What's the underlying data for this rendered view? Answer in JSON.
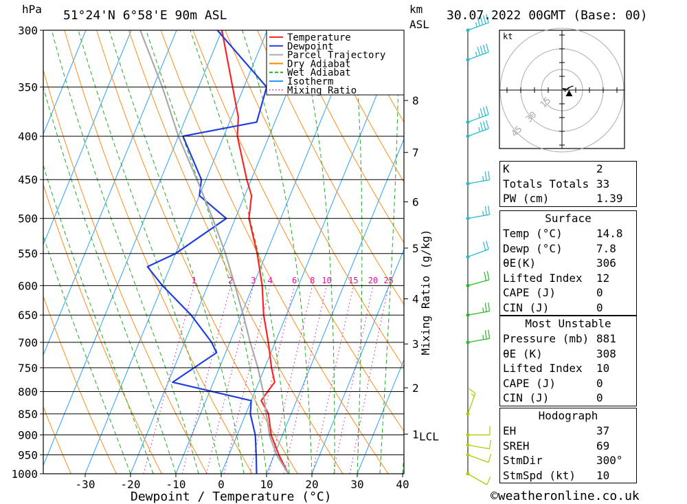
{
  "header": {
    "hpa_label": "hPa",
    "location": "51°24'N 6°58'E 90m ASL",
    "km_label": "km",
    "asl_label": "ASL",
    "datetime": "30.07.2022 00GMT (Base: 00)"
  },
  "legend": [
    {
      "label": "Temperature",
      "color": "#ff2222",
      "style": "solid"
    },
    {
      "label": "Dewpoint",
      "color": "#1e3ee0",
      "style": "solid"
    },
    {
      "label": "Parcel Trajectory",
      "color": "#aaaaaa",
      "style": "solid"
    },
    {
      "label": "Dry Adiabat",
      "color": "#ff8800",
      "style": "solid"
    },
    {
      "label": "Wet Adiabat",
      "color": "#22aa22",
      "style": "dashed"
    },
    {
      "label": "Isotherm",
      "color": "#2299ff",
      "style": "solid"
    },
    {
      "label": "Mixing Ratio",
      "color": "#dd1199",
      "style": "dotted"
    }
  ],
  "chart_data": {
    "type": "line",
    "subtype": "skew-t log-p",
    "xlabel": "Dewpoint / Temperature (°C)",
    "ylabel": "hPa",
    "x_ticks": [
      "-30",
      "-20",
      "-10",
      "0",
      "10",
      "20",
      "30",
      "40"
    ],
    "x_tick_values": [
      -30,
      -20,
      -10,
      0,
      10,
      20,
      30,
      40
    ],
    "xlim": [
      -40,
      40
    ],
    "pressure_ticks": [
      300,
      350,
      400,
      450,
      500,
      550,
      600,
      650,
      700,
      750,
      800,
      850,
      900,
      950,
      1000
    ],
    "ylim": [
      1000,
      300
    ],
    "km_ticks": [
      {
        "label": "8",
        "pressure": 363
      },
      {
        "label": "7",
        "pressure": 418
      },
      {
        "label": "6",
        "pressure": 478
      },
      {
        "label": "5",
        "pressure": 542
      },
      {
        "label": "4",
        "pressure": 622
      },
      {
        "label": "3",
        "pressure": 703
      },
      {
        "label": "2",
        "pressure": 792
      },
      {
        "label": "1",
        "pressure": 898
      }
    ],
    "lcl_label": "LCL",
    "lcl_pressure": 903,
    "mixing_ratio_axis_label": "Mixing Ratio (g/kg)",
    "mixing_ratio_labels": [
      "1",
      "2",
      "3",
      "4",
      "6",
      "8",
      "10",
      "15",
      "20",
      "25"
    ],
    "mixing_ratio_values": [
      1,
      2,
      3,
      4,
      6,
      8,
      10,
      15,
      20,
      25
    ],
    "series": [
      {
        "name": "Temperature",
        "color": "#ff2222",
        "points": [
          [
            1000,
            14.8
          ],
          [
            950,
            11
          ],
          [
            900,
            7.5
          ],
          [
            850,
            5
          ],
          [
            820,
            2.2
          ],
          [
            800,
            2.8
          ],
          [
            780,
            3.5
          ],
          [
            750,
            1.5
          ],
          [
            700,
            -1.5
          ],
          [
            650,
            -5
          ],
          [
            600,
            -8
          ],
          [
            550,
            -12
          ],
          [
            500,
            -17
          ],
          [
            470,
            -18.5
          ],
          [
            450,
            -21
          ],
          [
            400,
            -27
          ],
          [
            380,
            -28.5
          ],
          [
            350,
            -32.5
          ],
          [
            300,
            -40
          ]
        ]
      },
      {
        "name": "Dewpoint",
        "color": "#1e3ee0",
        "points": [
          [
            1000,
            7.8
          ],
          [
            950,
            6
          ],
          [
            900,
            4
          ],
          [
            850,
            1
          ],
          [
            820,
            0
          ],
          [
            780,
            -19
          ],
          [
            720,
            -12
          ],
          [
            700,
            -14
          ],
          [
            650,
            -21
          ],
          [
            600,
            -30
          ],
          [
            570,
            -35
          ],
          [
            550,
            -30
          ],
          [
            500,
            -22
          ],
          [
            470,
            -30
          ],
          [
            450,
            -31
          ],
          [
            400,
            -39
          ],
          [
            385,
            -24
          ],
          [
            350,
            -25
          ],
          [
            300,
            -41
          ]
        ]
      },
      {
        "name": "Parcel Trajectory",
        "color": "#aaaaaa",
        "points": [
          [
            1000,
            14.8
          ],
          [
            950,
            10.5
          ],
          [
            903,
            7.3
          ],
          [
            850,
            4.5
          ],
          [
            800,
            1.8
          ],
          [
            750,
            -1.5
          ],
          [
            700,
            -5.5
          ],
          [
            650,
            -9.5
          ],
          [
            600,
            -14
          ],
          [
            550,
            -19
          ],
          [
            500,
            -25
          ],
          [
            450,
            -32
          ],
          [
            400,
            -40
          ],
          [
            350,
            -48
          ],
          [
            300,
            -58
          ]
        ]
      }
    ]
  },
  "wind_profile_barbs": [
    {
      "pressure": 300,
      "dir": 250,
      "speed": 35
    },
    {
      "pressure": 325,
      "dir": 250,
      "speed": 35
    },
    {
      "pressure": 385,
      "dir": 250,
      "speed": 25
    },
    {
      "pressure": 400,
      "dir": 250,
      "speed": 25
    },
    {
      "pressure": 455,
      "dir": 260,
      "speed": 15
    },
    {
      "pressure": 500,
      "dir": 260,
      "speed": 15
    },
    {
      "pressure": 555,
      "dir": 250,
      "speed": 20
    },
    {
      "pressure": 600,
      "dir": 255,
      "speed": 20
    },
    {
      "pressure": 650,
      "dir": 260,
      "speed": 15
    },
    {
      "pressure": 700,
      "dir": 260,
      "speed": 15
    },
    {
      "pressure": 850,
      "dir": 200,
      "speed": 5
    },
    {
      "pressure": 900,
      "dir": 270,
      "speed": 10
    },
    {
      "pressure": 925,
      "dir": 280,
      "speed": 10
    },
    {
      "pressure": 950,
      "dir": 290,
      "speed": 10
    },
    {
      "pressure": 1000,
      "dir": 300,
      "speed": 10
    }
  ],
  "hodograph": {
    "unit": "kt",
    "ring_labels": [
      "15",
      "30",
      "45"
    ],
    "ring_values": [
      15,
      30,
      45
    ],
    "storm_motion": {
      "dir": 300,
      "speed": 10
    }
  },
  "indices": {
    "rows": [
      {
        "label": "K",
        "value": "2"
      },
      {
        "label": "Totals Totals",
        "value": "33"
      },
      {
        "label": "PW (cm)",
        "value": "1.39"
      }
    ]
  },
  "surface": {
    "title": "Surface",
    "rows": [
      {
        "label": "Temp (°C)",
        "value": "14.8"
      },
      {
        "label": "Dewp (°C)",
        "value": "7.8"
      },
      {
        "label": "θE(K)",
        "value": "306"
      },
      {
        "label": "Lifted Index",
        "value": "12"
      },
      {
        "label": "CAPE (J)",
        "value": "0"
      },
      {
        "label": "CIN (J)",
        "value": "0"
      }
    ]
  },
  "most_unstable": {
    "title": "Most Unstable",
    "rows": [
      {
        "label": "Pressure (mb)",
        "value": "881"
      },
      {
        "label": "θE (K)",
        "value": "308"
      },
      {
        "label": "Lifted Index",
        "value": "10"
      },
      {
        "label": "CAPE (J)",
        "value": "0"
      },
      {
        "label": "CIN (J)",
        "value": "0"
      }
    ]
  },
  "hodograph_table": {
    "title": "Hodograph",
    "rows": [
      {
        "label": "EH",
        "value": "37"
      },
      {
        "label": "SREH",
        "value": "69"
      },
      {
        "label": "StmDir",
        "value": "300°"
      },
      {
        "label": "StmSpd (kt)",
        "value": "10"
      }
    ]
  },
  "footer": {
    "copyright": "©weatheronline.co.uk"
  }
}
